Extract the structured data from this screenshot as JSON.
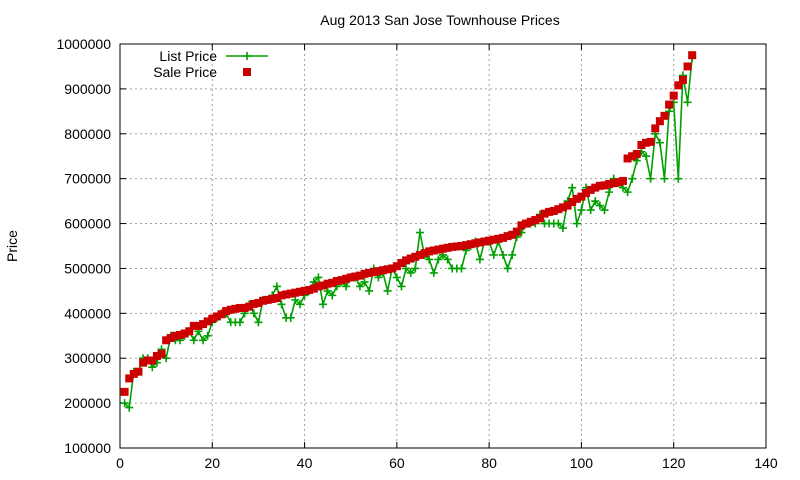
{
  "chart_data": {
    "type": "line",
    "title": "Aug 2013 San Jose Townhouse Prices",
    "xlabel": "",
    "ylabel": "Price",
    "xlim": [
      0,
      140
    ],
    "ylim": [
      100000,
      1000000
    ],
    "x_ticks": [
      "0",
      "20",
      "40",
      "60",
      "80",
      "100",
      "120",
      "140"
    ],
    "y_ticks": [
      "100000",
      "200000",
      "300000",
      "400000",
      "500000",
      "600000",
      "700000",
      "800000",
      "900000",
      "1000000"
    ],
    "grid": true,
    "legend_position": "top-left",
    "series": [
      {
        "name": "List Price",
        "color": "#00a000",
        "style": "line+cross",
        "x": [
          1,
          2,
          3,
          4,
          5,
          6,
          7,
          8,
          9,
          10,
          11,
          12,
          13,
          14,
          15,
          16,
          17,
          18,
          19,
          20,
          21,
          22,
          23,
          24,
          25,
          26,
          27,
          28,
          29,
          30,
          31,
          32,
          33,
          34,
          35,
          36,
          37,
          38,
          39,
          40,
          41,
          42,
          43,
          44,
          45,
          46,
          47,
          48,
          49,
          50,
          51,
          52,
          53,
          54,
          55,
          56,
          57,
          58,
          59,
          60,
          61,
          62,
          63,
          64,
          65,
          66,
          67,
          68,
          69,
          70,
          71,
          72,
          73,
          74,
          75,
          76,
          77,
          78,
          79,
          80,
          81,
          82,
          83,
          84,
          85,
          86,
          87,
          88,
          89,
          90,
          91,
          92,
          93,
          94,
          95,
          96,
          97,
          98,
          99,
          100,
          101,
          102,
          103,
          104,
          105,
          106,
          107,
          108,
          109,
          110,
          111,
          112,
          113,
          114,
          115,
          116,
          117,
          118,
          119,
          120,
          121,
          122,
          123,
          124
        ],
        "values": [
          200000,
          190000,
          270000,
          270000,
          300000,
          300000,
          280000,
          290000,
          320000,
          300000,
          350000,
          340000,
          340000,
          350000,
          360000,
          340000,
          360000,
          340000,
          350000,
          380000,
          390000,
          400000,
          400000,
          380000,
          380000,
          380000,
          400000,
          420000,
          400000,
          380000,
          430000,
          430000,
          440000,
          460000,
          420000,
          390000,
          390000,
          430000,
          420000,
          440000,
          450000,
          470000,
          480000,
          420000,
          450000,
          440000,
          460000,
          470000,
          460000,
          480000,
          480000,
          460000,
          470000,
          450000,
          500000,
          480000,
          490000,
          450000,
          500000,
          480000,
          460000,
          500000,
          490000,
          500000,
          580000,
          530000,
          520000,
          490000,
          520000,
          530000,
          520000,
          500000,
          500000,
          500000,
          540000,
          550000,
          560000,
          520000,
          560000,
          560000,
          530000,
          560000,
          530000,
          500000,
          530000,
          570000,
          580000,
          600000,
          600000,
          600000,
          620000,
          600000,
          600000,
          600000,
          600000,
          590000,
          650000,
          680000,
          600000,
          630000,
          680000,
          630000,
          650000,
          640000,
          630000,
          670000,
          700000,
          690000,
          680000,
          670000,
          700000,
          740000,
          760000,
          750000,
          700000,
          800000,
          780000,
          700000,
          850000,
          870000,
          700000,
          930000,
          870000,
          970000
        ]
      },
      {
        "name": "Sale Price",
        "color": "#cc0000",
        "style": "square",
        "x": [
          1,
          2,
          3,
          4,
          5,
          6,
          7,
          8,
          9,
          10,
          11,
          12,
          13,
          14,
          15,
          16,
          17,
          18,
          19,
          20,
          21,
          22,
          23,
          24,
          25,
          26,
          27,
          28,
          29,
          30,
          31,
          32,
          33,
          34,
          35,
          36,
          37,
          38,
          39,
          40,
          41,
          42,
          43,
          44,
          45,
          46,
          47,
          48,
          49,
          50,
          51,
          52,
          53,
          54,
          55,
          56,
          57,
          58,
          59,
          60,
          61,
          62,
          63,
          64,
          65,
          66,
          67,
          68,
          69,
          70,
          71,
          72,
          73,
          74,
          75,
          76,
          77,
          78,
          79,
          80,
          81,
          82,
          83,
          84,
          85,
          86,
          87,
          88,
          89,
          90,
          91,
          92,
          93,
          94,
          95,
          96,
          97,
          98,
          99,
          100,
          101,
          102,
          103,
          104,
          105,
          106,
          107,
          108,
          109,
          110,
          111,
          112,
          113,
          114,
          115,
          116,
          117,
          118,
          119,
          120,
          121,
          122,
          123,
          124
        ],
        "values": [
          225000,
          255000,
          265000,
          270000,
          290000,
          295000,
          295000,
          305000,
          310000,
          340000,
          345000,
          350000,
          352000,
          355000,
          360000,
          372000,
          372000,
          376000,
          382000,
          388000,
          393000,
          398000,
          405000,
          408000,
          410000,
          412000,
          412000,
          415000,
          421000,
          423000,
          428000,
          430000,
          432000,
          434000,
          440000,
          442000,
          444000,
          446000,
          448000,
          450000,
          452000,
          455000,
          460000,
          462000,
          466000,
          468000,
          472000,
          474000,
          477000,
          480000,
          482000,
          484000,
          488000,
          490000,
          492000,
          494000,
          496000,
          498000,
          500000,
          505000,
          512000,
          518000,
          522000,
          526000,
          530000,
          534000,
          538000,
          540000,
          542000,
          544000,
          546000,
          548000,
          549000,
          550000,
          552000,
          554000,
          556000,
          558000,
          560000,
          562000,
          564000,
          566000,
          568000,
          572000,
          575000,
          582000,
          596000,
          600000,
          604000,
          608000,
          612000,
          622000,
          626000,
          628000,
          632000,
          636000,
          640000,
          648000,
          655000,
          660000,
          668000,
          675000,
          680000,
          684000,
          685000,
          688000,
          690000,
          692000,
          695000,
          745000,
          750000,
          755000,
          775000,
          780000,
          782000,
          812000,
          828000,
          840000,
          865000,
          885000,
          908000,
          920000,
          950000,
          975000
        ]
      }
    ]
  }
}
